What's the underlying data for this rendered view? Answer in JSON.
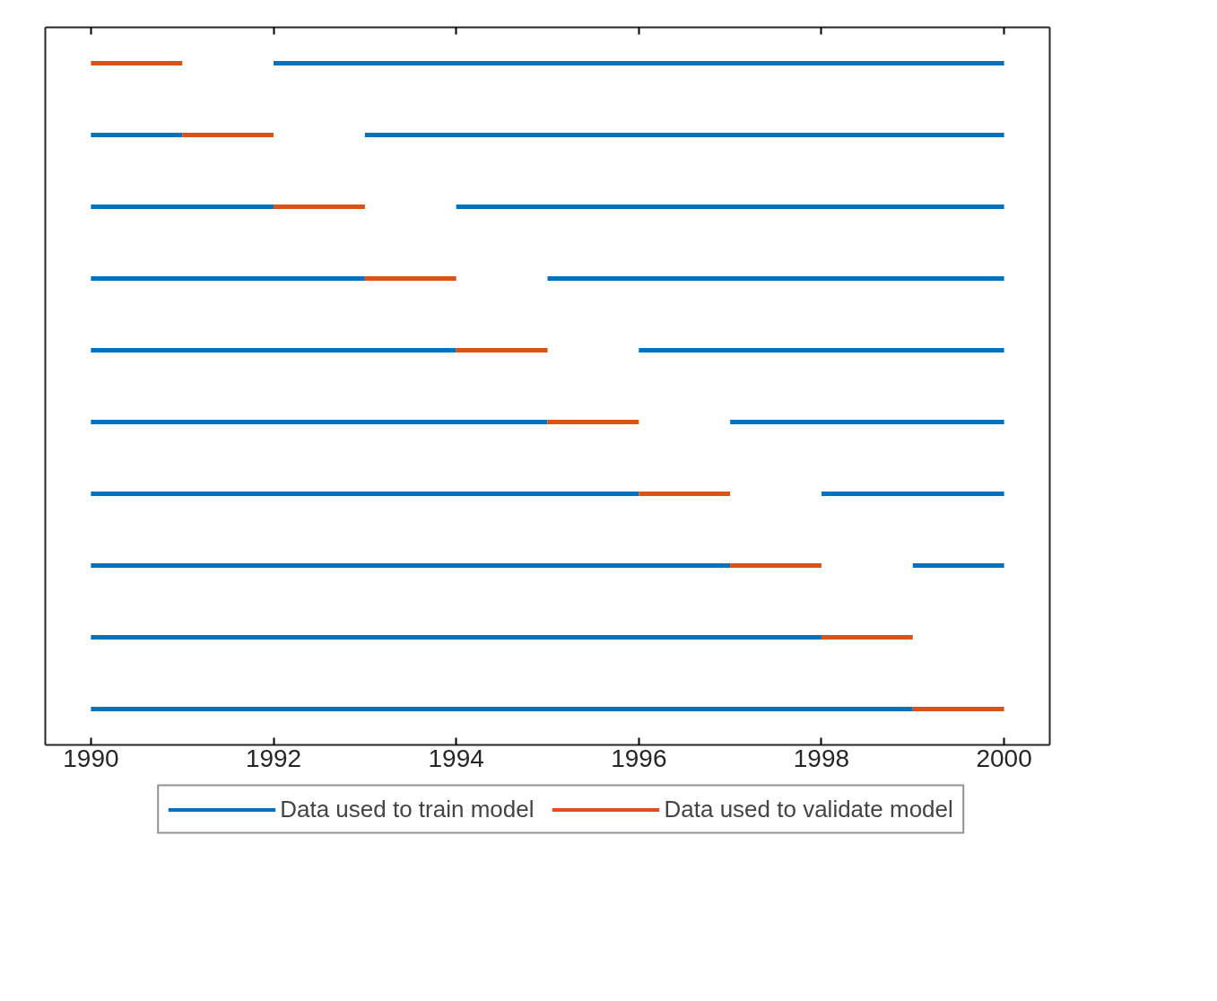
{
  "chart_data": {
    "type": "bar",
    "orientation": "horizontal",
    "categories": [
      null,
      null,
      null,
      null,
      null,
      null,
      null,
      null,
      null,
      null
    ],
    "series": [
      {
        "name": "Data used to train model",
        "color": "#0072bd",
        "base": [
          null,
          1990,
          1990,
          1990,
          1990,
          1990,
          1990,
          1990,
          1990,
          1990
        ],
        "values": [
          null,
          1,
          2,
          3,
          4,
          5,
          6,
          7,
          8,
          9
        ]
      },
      {
        "name": "Data used to validate model",
        "color": "#d95319",
        "base": [
          1990,
          1991,
          1992,
          1993,
          1994,
          1995,
          1996,
          1997,
          1998,
          1999
        ],
        "values": [
          1,
          1,
          1,
          1,
          1,
          1,
          1,
          1,
          1,
          1
        ]
      },
      {
        "color": "#0072bd",
        "base": [
          1992,
          1993,
          1994,
          1995,
          1996,
          1997,
          1998,
          1999,
          null,
          null
        ],
        "values": [
          8,
          7,
          6,
          5,
          4,
          3,
          2,
          1,
          null,
          null
        ]
      }
    ],
    "xlim": [
      1989.5,
      2000.5
    ],
    "xticks": [
      1990,
      1992,
      1994,
      1996,
      1998,
      2000
    ],
    "tick_labels": "x",
    "grid": false,
    "legend": "bottom"
  }
}
